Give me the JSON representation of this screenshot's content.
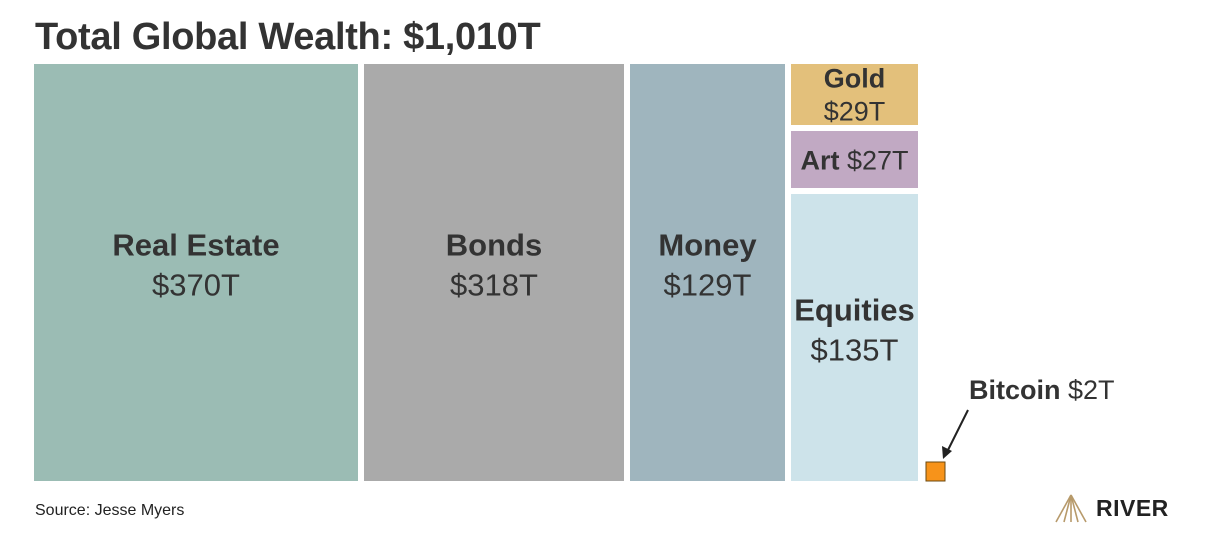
{
  "title": "Total Global Wealth: $1,010T",
  "source": "Source: Jesse Myers",
  "logo": {
    "text": "RIVER",
    "icon": "river-mountain-logo-icon",
    "color": "#b79a6b"
  },
  "chart_data": {
    "type": "treemap",
    "title": "Total Global Wealth: $1,010T",
    "unit": "T",
    "total": 1010,
    "items": [
      {
        "name": "Real Estate",
        "value": 370,
        "label": "$370T",
        "color": "#9bbcb4"
      },
      {
        "name": "Bonds",
        "value": 318,
        "label": "$318T",
        "color": "#aaaaaa"
      },
      {
        "name": "Money",
        "value": 129,
        "label": "$129T",
        "color": "#9fb5be"
      },
      {
        "name": "Gold",
        "value": 29,
        "label": "$29T",
        "color": "#e3c07b"
      },
      {
        "name": "Art",
        "value": 27,
        "label": "$27T",
        "color": "#c1a9c3"
      },
      {
        "name": "Equities",
        "value": 135,
        "label": "$135T",
        "color": "#cde3ea"
      },
      {
        "name": "Bitcoin",
        "value": 2,
        "label": "$2T",
        "color": "#f7931a"
      }
    ]
  }
}
